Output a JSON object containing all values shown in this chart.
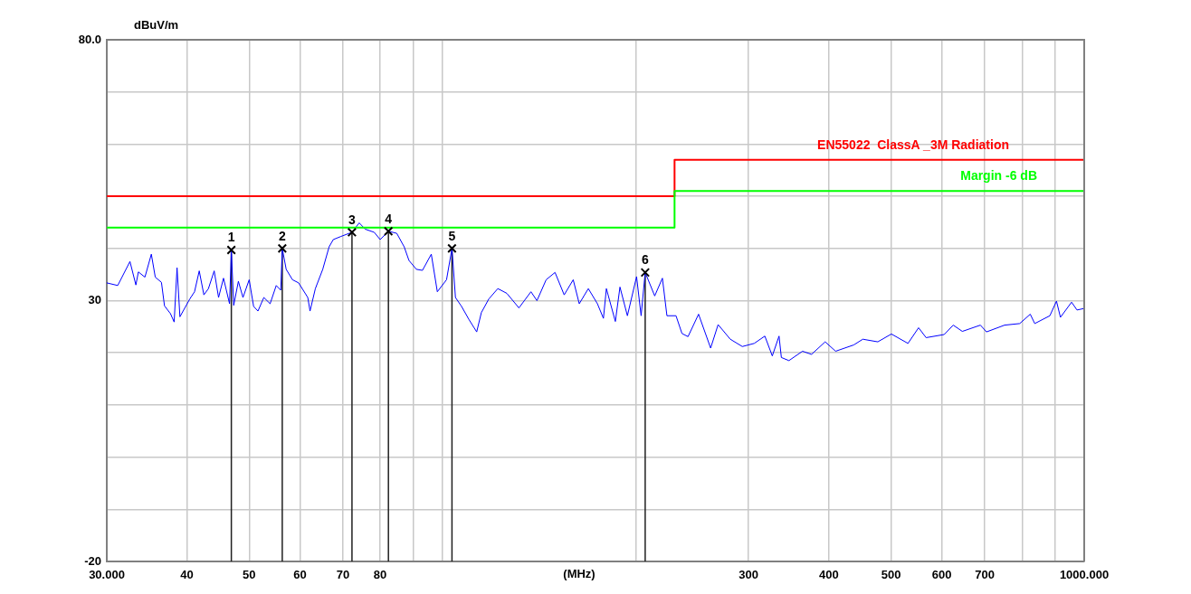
{
  "chart_data": {
    "type": "line",
    "xlabel": "(MHz)",
    "ylabel": "dBuV/m",
    "log": "x",
    "grid": true,
    "xlim": [
      30,
      1000
    ],
    "xticks": [
      {
        "value": 30,
        "label": "30.000"
      },
      40,
      50,
      60,
      70,
      80,
      {
        "value": 90,
        "label": null
      },
      {
        "value": 100,
        "label": null
      },
      {
        "value": 200,
        "label": null
      },
      300,
      400,
      500,
      600,
      700,
      {
        "value": 800,
        "label": null
      },
      {
        "value": 900,
        "label": null
      },
      {
        "value": 1000,
        "label": "1000.000"
      }
    ],
    "ylim": [
      -20,
      80
    ],
    "yticks": [
      -20,
      {
        "value": -10,
        "label": null
      },
      {
        "value": 0,
        "label": null
      },
      {
        "value": 10,
        "label": null
      },
      {
        "value": 20,
        "label": null
      },
      30,
      {
        "value": 40,
        "label": null
      },
      {
        "value": 50,
        "label": null
      },
      {
        "value": 60,
        "label": null
      },
      {
        "value": 70,
        "label": null
      },
      {
        "value": 80,
        "label": "80.0"
      }
    ],
    "series": [
      {
        "color": "#0000ff",
        "x": [
          30.0,
          31.2,
          32.6,
          33.3,
          33.6,
          34.4,
          35.2,
          35.7,
          36.5,
          36.9,
          37.7,
          38.2,
          38.6,
          39.0,
          40.4,
          41.1,
          41.8,
          42.5,
          43.2,
          44.1,
          44.8,
          45.6,
          46.6,
          46.9,
          47.3,
          48.1,
          48.9,
          50.0,
          50.8,
          51.6,
          52.7,
          53.9,
          55.1,
          56.0,
          56.3,
          57.1,
          58.4,
          59.7,
          61.7,
          62.2,
          63.4,
          65.1,
          66.6,
          67.6,
          69.5,
          72.3,
          74.2,
          75.8,
          78.3,
          80.0,
          82.4,
          84.9,
          87.2,
          88.7,
          91.1,
          93.1,
          96.1,
          98.2,
          101.5,
          103.5,
          104.8,
          107.1,
          110.1,
          113.1,
          115.0,
          118.1,
          122.0,
          126.0,
          131.6,
          137.4,
          140.4,
          145.1,
          149.8,
          154.8,
          159.9,
          163.4,
          168.8,
          174.4,
          178.2,
          180.1,
          186.0,
          189.1,
          194.2,
          200.7,
          204.0,
          207.0,
          214.2,
          220.2,
          223.8,
          231.2,
          236.2,
          241.4,
          250.7,
          261.8,
          268.9,
          280.9,
          293.3,
          306.1,
          318.0,
          326.6,
          334.6,
          337.4,
          346.7,
          364.0,
          376.0,
          394.8,
          409.9,
          437.4,
          451.9,
          476.9,
          500.7,
          531.4,
          552.0,
          567.1,
          605.2,
          625.1,
          645.8,
          689.1,
          704.3,
          751.5,
          793.4,
          824.0,
          837.4,
          884.1,
          905.3,
          918.3,
          955.7,
          974.5,
          1000
        ],
        "values": [
          33.4,
          32.9,
          37.5,
          33.0,
          35.5,
          34.5,
          38.9,
          34.5,
          33.5,
          29.0,
          27.5,
          25.9,
          36.3,
          26.9,
          30.3,
          31.7,
          35.7,
          31.1,
          32.3,
          35.7,
          30.6,
          34.3,
          29.4,
          39.7,
          29.1,
          33.7,
          30.6,
          34.0,
          28.9,
          28.0,
          30.6,
          29.4,
          32.9,
          32.0,
          40.0,
          36.0,
          34.0,
          33.4,
          30.6,
          28.0,
          32.3,
          36.0,
          40.3,
          41.7,
          42.3,
          43.1,
          44.9,
          43.7,
          43.1,
          41.7,
          43.3,
          42.9,
          40.3,
          37.7,
          36.0,
          35.8,
          38.9,
          31.7,
          34.0,
          40.0,
          30.6,
          28.9,
          26.3,
          24.0,
          27.7,
          30.3,
          32.3,
          31.4,
          28.6,
          31.7,
          30.0,
          34.0,
          35.4,
          31.1,
          34.0,
          29.4,
          32.3,
          29.4,
          26.6,
          32.3,
          26.0,
          32.6,
          27.1,
          34.6,
          27.1,
          35.4,
          30.9,
          34.3,
          27.1,
          27.1,
          23.7,
          23.1,
          27.4,
          20.9,
          25.4,
          22.6,
          21.2,
          21.8,
          23.2,
          19.4,
          23.2,
          19.1,
          18.5,
          20.3,
          19.7,
          22.1,
          20.3,
          21.5,
          22.6,
          22.1,
          23.6,
          21.8,
          24.8,
          22.9,
          23.5,
          25.3,
          24.1,
          25.3,
          24.0,
          25.3,
          25.6,
          27.4,
          25.6,
          27.1,
          29.9,
          26.8,
          29.7,
          28.2,
          28.5
        ]
      },
      {
        "type": "step",
        "name": "EN55022  ClassA _3M Radiation",
        "color": "#ff0000",
        "x": [
          30,
          230,
          1000
        ],
        "values": [
          50,
          57,
          57
        ]
      },
      {
        "type": "step",
        "name": "Margin -6 dB",
        "color": "#00ff00",
        "x": [
          30,
          230,
          1000
        ],
        "values": [
          44,
          51,
          51
        ]
      },
      {
        "type": "lollipop",
        "color": "#000000",
        "marker": "cross",
        "x": [
          46.9,
          56.3,
          72.3,
          82.4,
          103.5,
          207.0
        ],
        "values": [
          39.7,
          40.0,
          43.1,
          43.3,
          40.0,
          35.4
        ]
      }
    ],
    "annotations": [
      {
        "text": "1",
        "x": 46.9,
        "y": 39.7
      },
      {
        "text": "2",
        "x": 56.3,
        "y": 40.0
      },
      {
        "text": "3",
        "x": 72.3,
        "y": 43.1
      },
      {
        "text": "4",
        "x": 82.4,
        "y": 43.3
      },
      {
        "text": "5",
        "x": 103.5,
        "y": 40.0
      },
      {
        "text": "6",
        "x": 207.0,
        "y": 35.4
      }
    ]
  }
}
